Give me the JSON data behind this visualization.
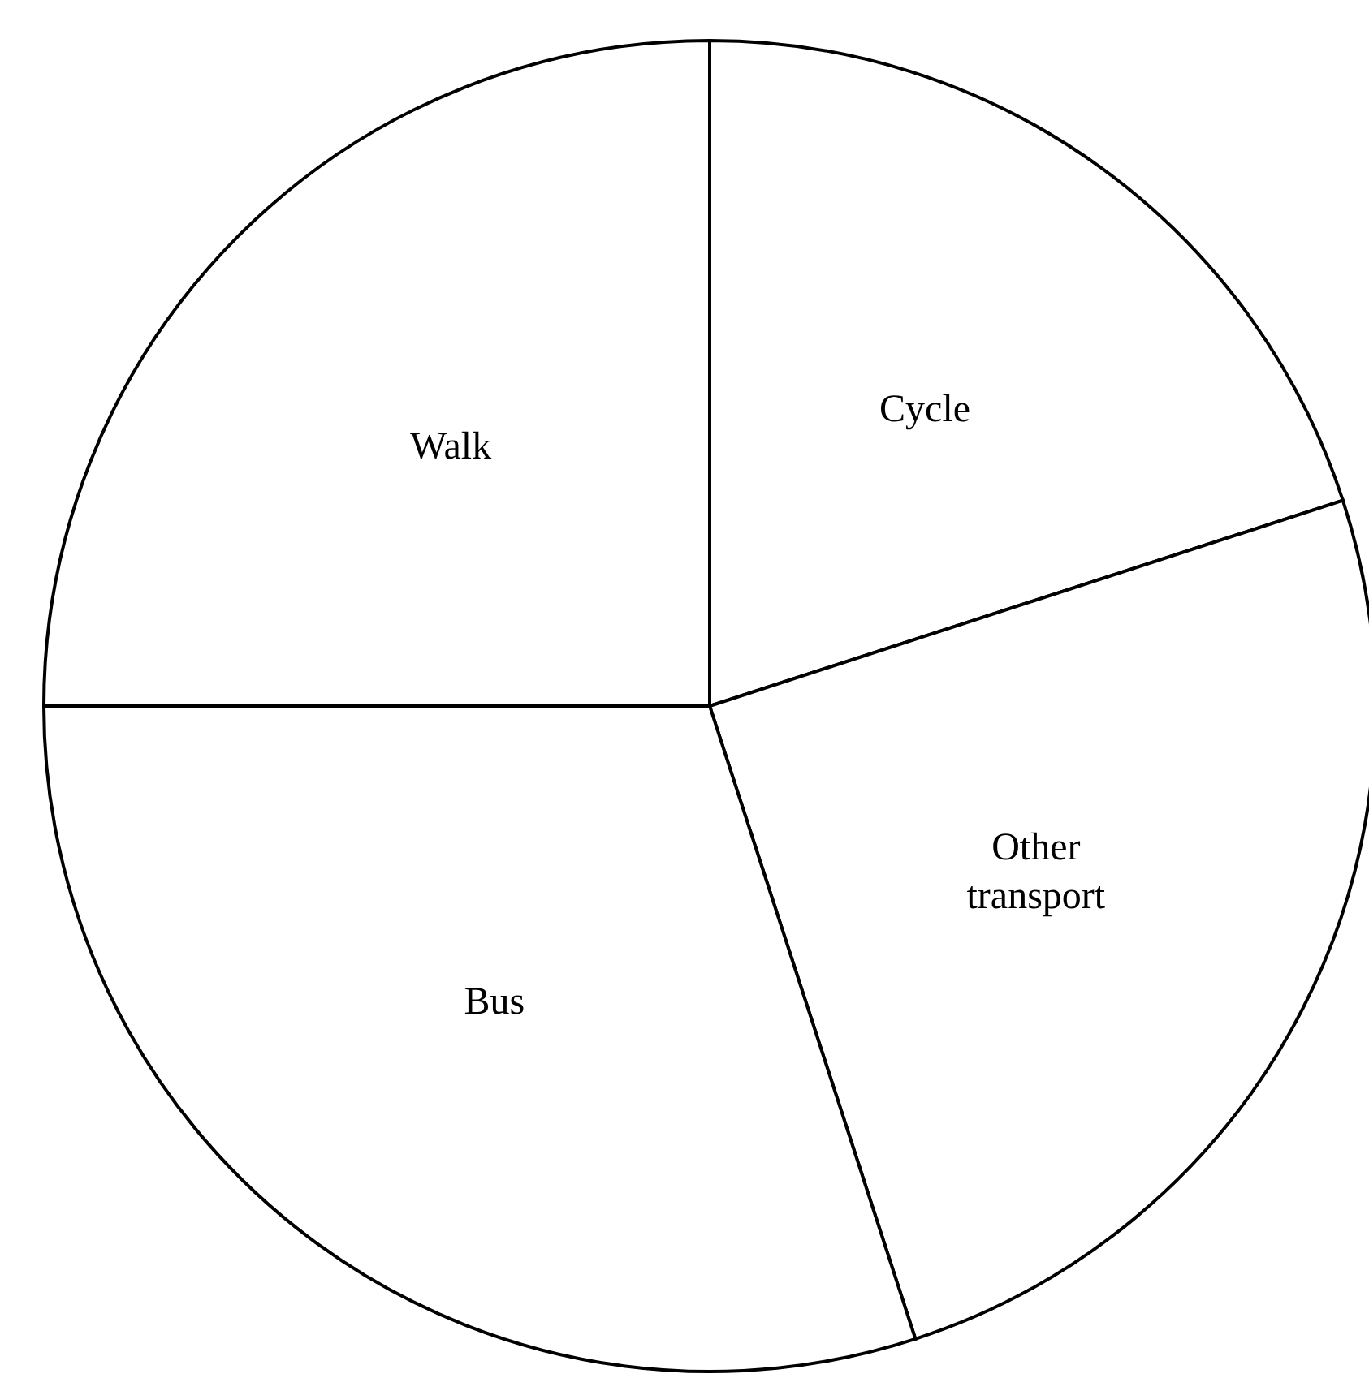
{
  "chart_data": {
    "type": "pie",
    "categories": [
      "Cycle",
      "Other transport",
      "Bus",
      "Walk"
    ],
    "values": [
      20,
      25,
      30,
      25
    ],
    "colors": [
      "#ffffff",
      "#ffffff",
      "#ffffff",
      "#ffffff"
    ],
    "legend": false
  }
}
